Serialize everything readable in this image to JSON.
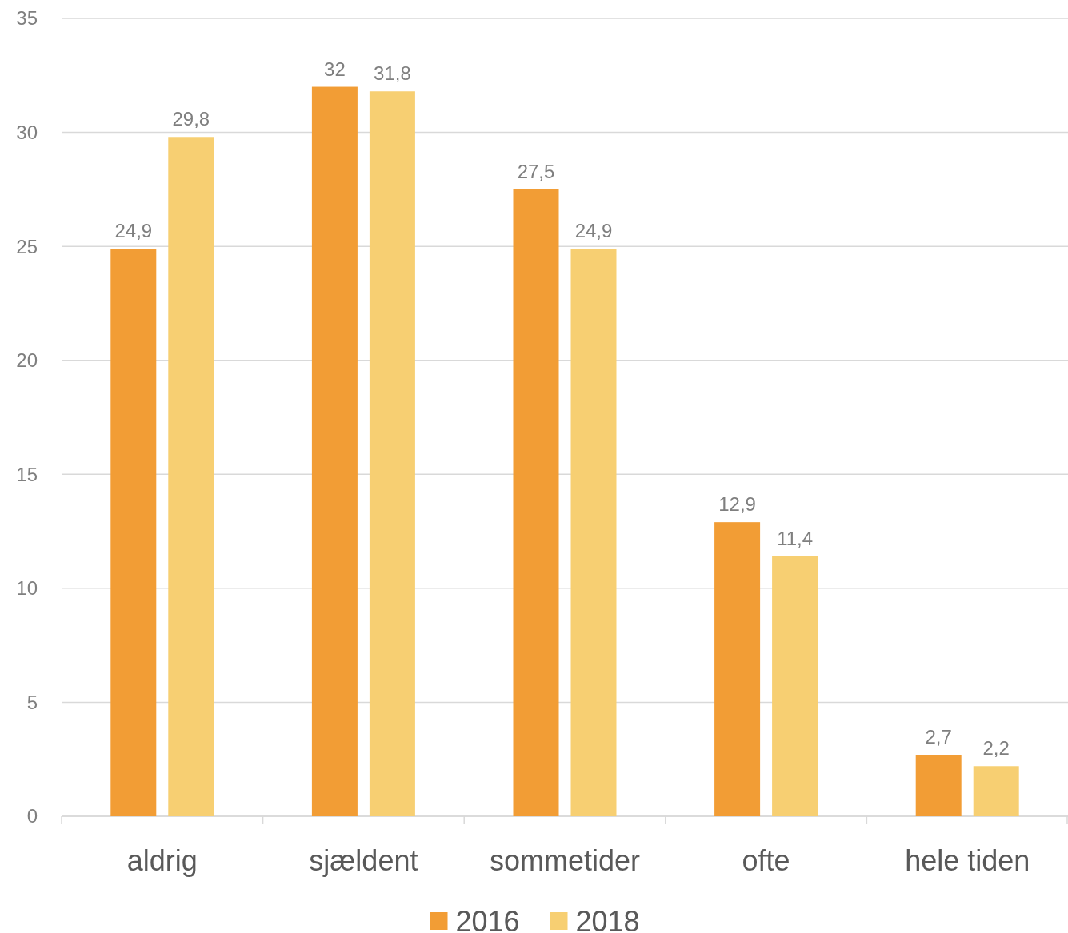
{
  "chart_data": {
    "type": "bar",
    "categories": [
      "aldrig",
      "sjældent",
      "sommetider",
      "ofte",
      "hele tiden"
    ],
    "series": [
      {
        "name": "2016",
        "color": "#f29d35",
        "values": [
          24.9,
          32,
          27.5,
          12.9,
          2.7
        ],
        "value_labels": [
          "24,9",
          "32",
          "27,5",
          "12,9",
          "2,7"
        ]
      },
      {
        "name": "2018",
        "color": "#f7cf72",
        "values": [
          29.8,
          31.8,
          24.9,
          11.4,
          2.2
        ],
        "value_labels": [
          "29,8",
          "31,8",
          "24,9",
          "11,4",
          "2,2"
        ]
      }
    ],
    "ylim": [
      0,
      35
    ],
    "yticks": [
      0,
      5,
      10,
      15,
      20,
      25,
      30,
      35
    ],
    "grid": "y",
    "legend": "bottom"
  }
}
